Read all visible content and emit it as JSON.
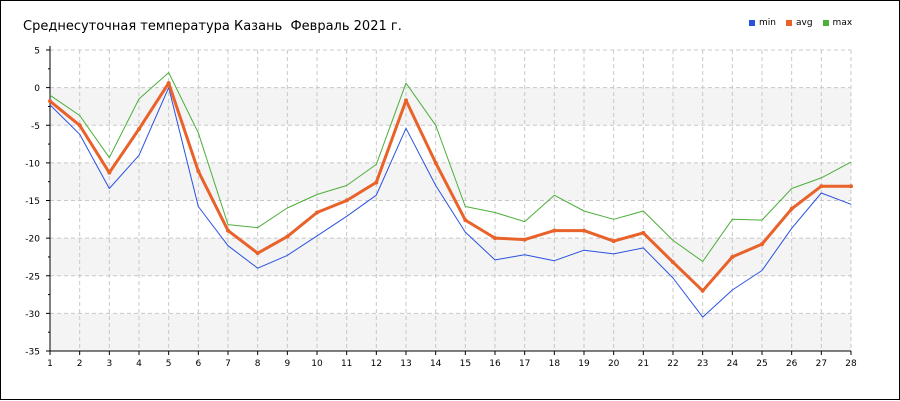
{
  "chart_data": {
    "type": "line",
    "title": "Среднесуточная температура Казань  Февраль 2021 г.",
    "categories": [
      "1",
      "2",
      "3",
      "4",
      "5",
      "6",
      "7",
      "8",
      "9",
      "10",
      "11",
      "12",
      "13",
      "14",
      "15",
      "16",
      "17",
      "18",
      "19",
      "20",
      "21",
      "22",
      "23",
      "24",
      "25",
      "26",
      "27",
      "28"
    ],
    "y_ticks": [
      "5",
      "0",
      "-5",
      "-10",
      "-15",
      "-20",
      "-25",
      "-30",
      "-35"
    ],
    "ylim": [
      -35,
      5
    ],
    "grid": true,
    "legend_position": "top-right",
    "series": [
      {
        "name": "min",
        "color": "#2a52e0",
        "values": [
          -2.3,
          -6.2,
          -13.4,
          -9.0,
          0.0,
          -15.8,
          -21.0,
          -24.0,
          -22.3,
          -19.7,
          -17.1,
          -14.3,
          -5.4,
          -13.0,
          -19.2,
          -22.9,
          -22.2,
          -23.0,
          -21.6,
          -22.1,
          -21.3,
          -25.3,
          -30.5,
          -26.9,
          -24.3,
          -18.7,
          -14.0,
          -15.5
        ]
      },
      {
        "name": "avg",
        "color": "#e8622a",
        "values": [
          -1.8,
          -5.0,
          -11.3,
          -5.5,
          0.6,
          -11.1,
          -19.0,
          -22.0,
          -19.8,
          -16.6,
          -15.0,
          -12.6,
          -1.7,
          -10.0,
          -17.6,
          -20.0,
          -20.2,
          -19.0,
          -19.0,
          -20.4,
          -19.3,
          -23.2,
          -27.0,
          -22.5,
          -20.8,
          -16.1,
          -13.1,
          -13.1
        ]
      },
      {
        "name": "max",
        "color": "#4caf3a",
        "values": [
          -1.0,
          -3.7,
          -9.3,
          -1.5,
          2.0,
          -6.0,
          -18.2,
          -18.6,
          -16.0,
          -14.2,
          -13.0,
          -10.2,
          0.6,
          -5.0,
          -15.8,
          -16.6,
          -17.8,
          -14.3,
          -16.4,
          -17.5,
          -16.4,
          -20.3,
          -23.1,
          -17.5,
          -17.6,
          -13.4,
          -12.0,
          -9.9
        ]
      }
    ]
  }
}
